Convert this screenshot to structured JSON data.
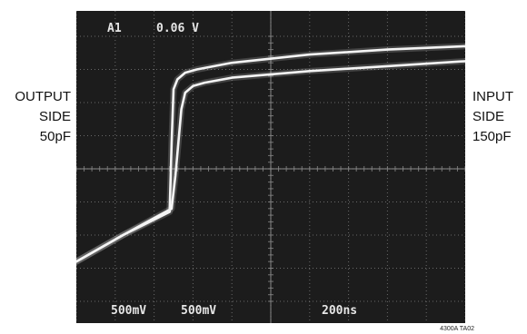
{
  "left_label": {
    "lines": [
      "OUTPUT",
      "SIDE",
      "50pF"
    ]
  },
  "right_label": {
    "lines": [
      "INPUT",
      "SIDE",
      "150pF"
    ]
  },
  "scope": {
    "channel": "A1",
    "trigger_level": "0.06 V",
    "ch1_scale": "500mV",
    "ch2_scale": "500mV",
    "timebase": "200ns",
    "screen_color": "#1c1c1c",
    "grid_color": "#8a8a8a",
    "trace_color": "#f4f4f4"
  },
  "figure_id": "4300A TA02",
  "chart_data": {
    "type": "line",
    "title": "",
    "xlabel": "",
    "ylabel": "",
    "divisions": {
      "x": 10,
      "y": 8
    },
    "xlim": [
      0,
      10
    ],
    "ylim": [
      0,
      8
    ],
    "series": [
      {
        "name": "OUTPUT SIDE 50pF",
        "x": [
          0,
          1.2,
          2.4,
          2.45,
          2.5,
          2.6,
          2.8,
          3.1,
          4,
          6,
          8,
          10
        ],
        "y": [
          1.2,
          2.0,
          2.7,
          4.8,
          6.4,
          6.7,
          6.9,
          7.0,
          7.2,
          7.45,
          7.6,
          7.7
        ]
      },
      {
        "name": "INPUT SIDE 150pF",
        "x": [
          0,
          1.2,
          2.45,
          2.55,
          2.7,
          2.8,
          3.0,
          3.3,
          4,
          6,
          8,
          10
        ],
        "y": [
          1.2,
          2.0,
          2.8,
          3.8,
          5.8,
          6.3,
          6.5,
          6.6,
          6.75,
          6.95,
          7.1,
          7.25
        ]
      }
    ]
  }
}
